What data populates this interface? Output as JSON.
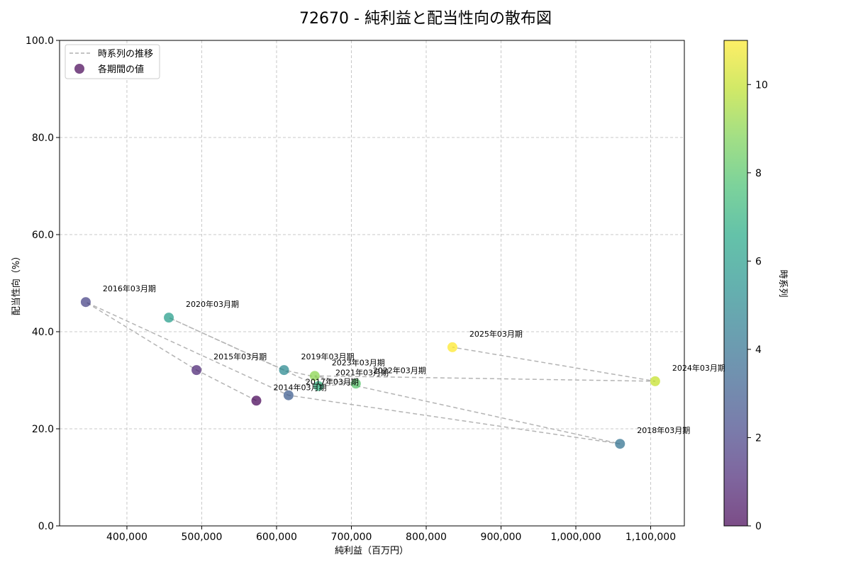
{
  "chart_data": {
    "type": "scatter",
    "title": "72670 - 純利益と配当性向の散布図",
    "xlabel": "純利益（百万円）",
    "ylabel": "配当性向（%）",
    "xlim": [
      310000,
      1145000
    ],
    "ylim": [
      0,
      100
    ],
    "x_ticks": [
      400000,
      500000,
      600000,
      700000,
      800000,
      900000,
      1000000,
      1100000
    ],
    "x_tick_labels": [
      "400,000",
      "500,000",
      "600,000",
      "700,000",
      "800,000",
      "900,000",
      "1,000,000",
      "1,100,000"
    ],
    "y_ticks": [
      0,
      20,
      40,
      60,
      80,
      100
    ],
    "y_tick_labels": [
      "0.0",
      "20.0",
      "40.0",
      "60.0",
      "80.0",
      "100.0"
    ],
    "grid": true,
    "legend": {
      "placement": "top-left",
      "entries": [
        "時系列の推移",
        "各期間の値"
      ]
    },
    "colorbar": {
      "label": "時系列",
      "range": [
        0,
        11
      ],
      "ticks": [
        0,
        2,
        4,
        6,
        8,
        10
      ],
      "tick_labels": [
        "0",
        "2",
        "4",
        "6",
        "8",
        "10"
      ],
      "colormap": "viridis"
    },
    "points": [
      {
        "label": "2014年03月期",
        "x": 573000,
        "y": 25.8,
        "t": 0
      },
      {
        "label": "2015年03月期",
        "x": 493000,
        "y": 32.1,
        "t": 1
      },
      {
        "label": "2016年03月期",
        "x": 345000,
        "y": 46.1,
        "t": 2
      },
      {
        "label": "2017年03月期",
        "x": 616000,
        "y": 26.9,
        "t": 3
      },
      {
        "label": "2018年03月期",
        "x": 1059000,
        "y": 16.9,
        "t": 4
      },
      {
        "label": "2019年03月期",
        "x": 610000,
        "y": 32.1,
        "t": 5
      },
      {
        "label": "2020年03月期",
        "x": 456000,
        "y": 42.9,
        "t": 6
      },
      {
        "label": "2021年03月期",
        "x": 656000,
        "y": 28.8,
        "t": 7
      },
      {
        "label": "2022年03月期",
        "x": 706000,
        "y": 29.3,
        "t": 8
      },
      {
        "label": "2023年03月期",
        "x": 651000,
        "y": 30.9,
        "t": 9
      },
      {
        "label": "2024年03月期",
        "x": 1106000,
        "y": 29.8,
        "t": 10
      },
      {
        "label": "2025年03月期",
        "x": 835000,
        "y": 36.8,
        "t": 11
      }
    ]
  }
}
